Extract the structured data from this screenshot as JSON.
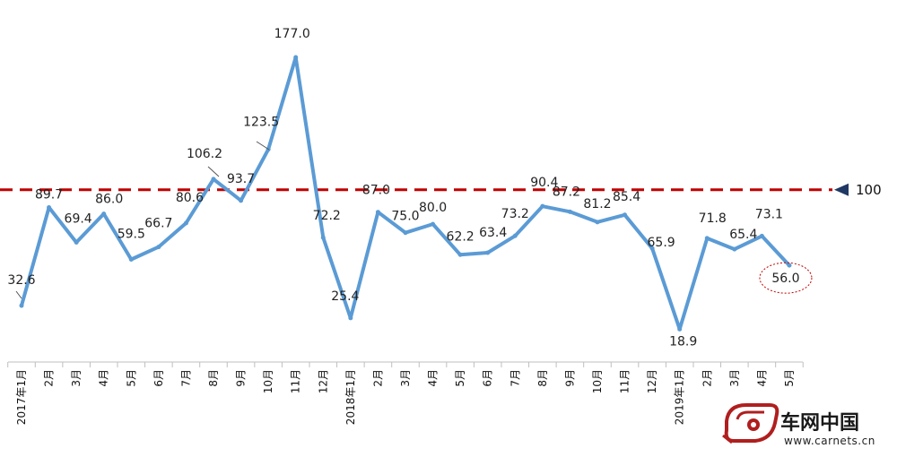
{
  "chart_data": {
    "type": "line",
    "categories": [
      "2017年1月",
      "2月",
      "3月",
      "4月",
      "5月",
      "6月",
      "7月",
      "8月",
      "9月",
      "10月",
      "11月",
      "12月",
      "2018年1月",
      "2月",
      "3月",
      "4月",
      "5月",
      "6月",
      "7月",
      "8月",
      "9月",
      "10月",
      "11月",
      "12月",
      "2019年1月",
      "2月",
      "3月",
      "4月",
      "5月"
    ],
    "values": [
      32.6,
      89.7,
      69.4,
      86.0,
      59.5,
      66.7,
      80.6,
      106.2,
      93.7,
      123.5,
      177.0,
      72.2,
      25.4,
      87.0,
      75.0,
      80.0,
      62.2,
      63.4,
      73.2,
      90.4,
      87.2,
      81.2,
      85.4,
      65.9,
      18.9,
      71.8,
      65.4,
      73.1,
      56.0
    ],
    "value_labels": [
      "32.6",
      "89.7",
      "69.4",
      "86.0",
      "59.5",
      "66.7",
      "80.6",
      "106.2",
      "93.7",
      "123.5",
      "177.0",
      "72.2",
      "25.4",
      "87.0",
      "75.0",
      "80.0",
      "62.2",
      "63.4",
      "73.2",
      "90.4",
      "87.2",
      "81.2",
      "85.4",
      "65.9",
      "18.9",
      "71.8",
      "65.4",
      "73.1",
      "56.0"
    ],
    "reference_line": {
      "value": 100,
      "label": "100",
      "color": "#c00000",
      "style": "dashed"
    },
    "line_color": "#5b9bd5",
    "highlight": {
      "index": 28,
      "color": "#c00000"
    },
    "ylim": [
      0,
      190
    ],
    "grid": false,
    "legend": "none"
  },
  "watermark": {
    "brand": "车网中国",
    "url": "www.carnets.cn",
    "color": "#b01e1e"
  }
}
